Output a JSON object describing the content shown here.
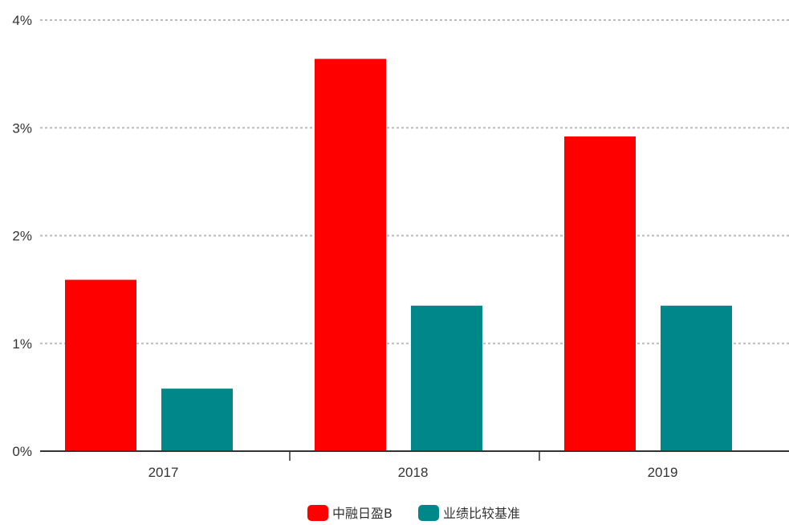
{
  "chart_data": {
    "type": "bar",
    "categories": [
      "2017",
      "2018",
      "2019"
    ],
    "series": [
      {
        "name": "中融日盈B",
        "values": [
          1.59,
          3.64,
          2.92
        ],
        "color": "#ff0000"
      },
      {
        "name": "业绩比较基准",
        "values": [
          0.58,
          1.35,
          1.35
        ],
        "color": "#00878a"
      }
    ],
    "y_ticks": [
      "0%",
      "1%",
      "2%",
      "3%",
      "4%"
    ],
    "ylim": [
      0,
      4
    ],
    "y_unit": "%",
    "grid": true,
    "grid_style": "dotted",
    "legend_position": "bottom-center"
  }
}
